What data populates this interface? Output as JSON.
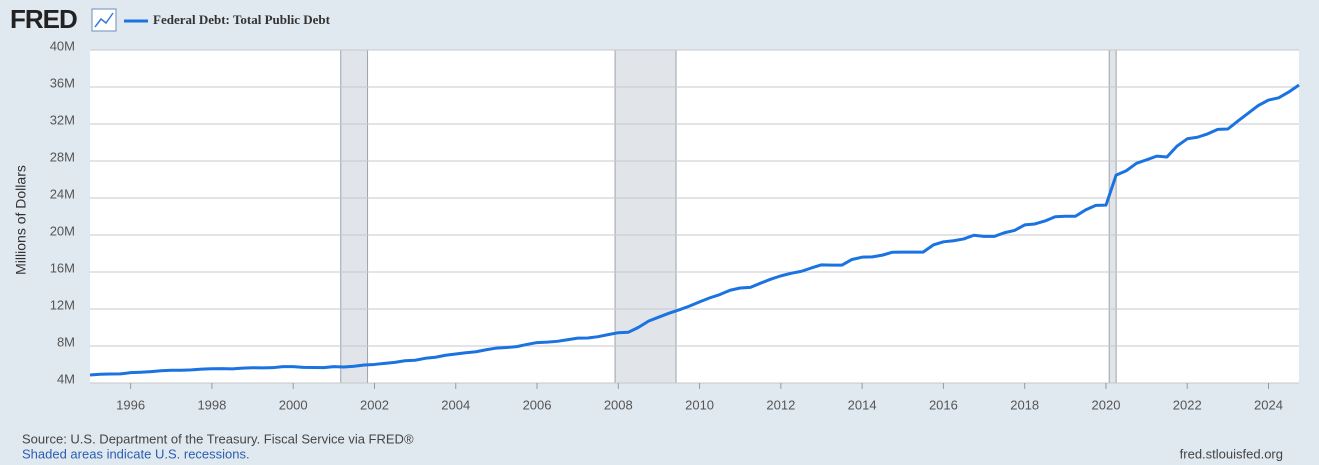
{
  "logo": "FRED",
  "chart_data": {
    "type": "line",
    "y_label": "Millions of Dollars",
    "source": "Source: U.S. Department of the Treasury. Fiscal Service via FRED®",
    "note": "Shaded areas indicate U.S. recessions.",
    "site": "fred.stlouisfed.org",
    "grid": true,
    "recessions": [
      [
        2001.17,
        2001.83
      ],
      [
        2007.92,
        2009.42
      ],
      [
        2020.08,
        2020.25
      ]
    ],
    "xlim": [
      1995,
      2024.75
    ],
    "xticks": [
      1996,
      1998,
      2000,
      2002,
      2004,
      2006,
      2008,
      2010,
      2012,
      2014,
      2016,
      2018,
      2020,
      2022,
      2024
    ],
    "ylim": [
      4000000,
      40000000
    ],
    "yticks": [
      {
        "value": 4000000,
        "label": "4M"
      },
      {
        "value": 8000000,
        "label": "8M"
      },
      {
        "value": 12000000,
        "label": "12M"
      },
      {
        "value": 16000000,
        "label": "16M"
      },
      {
        "value": 20000000,
        "label": "20M"
      },
      {
        "value": 24000000,
        "label": "24M"
      },
      {
        "value": 28000000,
        "label": "28M"
      },
      {
        "value": 32000000,
        "label": "32M"
      },
      {
        "value": 36000000,
        "label": "36M"
      },
      {
        "value": 40000000,
        "label": "40M"
      }
    ],
    "x": [
      1995,
      1995.25,
      1995.5,
      1995.75,
      1996,
      1996.25,
      1996.5,
      1996.75,
      1997,
      1997.25,
      1997.5,
      1997.75,
      1998,
      1998.25,
      1998.5,
      1998.75,
      1999,
      1999.25,
      1999.5,
      1999.75,
      2000,
      2000.25,
      2000.5,
      2000.75,
      2001,
      2001.25,
      2001.5,
      2001.75,
      2002,
      2002.25,
      2002.5,
      2002.75,
      2003,
      2003.25,
      2003.5,
      2003.75,
      2004,
      2004.25,
      2004.5,
      2004.75,
      2005,
      2005.25,
      2005.5,
      2005.75,
      2006,
      2006.25,
      2006.5,
      2006.75,
      2007,
      2007.25,
      2007.5,
      2007.75,
      2008,
      2008.25,
      2008.5,
      2008.75,
      2009,
      2009.25,
      2009.5,
      2009.75,
      2010,
      2010.25,
      2010.5,
      2010.75,
      2011,
      2011.25,
      2011.5,
      2011.75,
      2012,
      2012.25,
      2012.5,
      2012.75,
      2013,
      2013.25,
      2013.5,
      2013.75,
      2014,
      2014.25,
      2014.5,
      2014.75,
      2015,
      2015.25,
      2015.5,
      2015.75,
      2016,
      2016.25,
      2016.5,
      2016.75,
      2017,
      2017.25,
      2017.5,
      2017.75,
      2018,
      2018.25,
      2018.5,
      2018.75,
      2019,
      2019.25,
      2019.5,
      2019.75,
      2020,
      2020.25,
      2020.5,
      2020.75,
      2021,
      2021.25,
      2021.5,
      2021.75,
      2022,
      2022.25,
      2022.5,
      2022.75,
      2023,
      2023.25,
      2023.5,
      2023.75,
      2024,
      2024.25,
      2024.5,
      2024.75
    ],
    "series": [
      {
        "name": "Federal Debt: Total Public Debt",
        "color": "#1a73e0",
        "values": [
          4864000,
          4951000,
          4974000,
          4989000,
          5118000,
          5161000,
          5225000,
          5324000,
          5381000,
          5376000,
          5413000,
          5502000,
          5542000,
          5548000,
          5526000,
          5614000,
          5651000,
          5639000,
          5656000,
          5776000,
          5773000,
          5686000,
          5674000,
          5662000,
          5773000,
          5727000,
          5807000,
          5943000,
          6006000,
          6126000,
          6228000,
          6405000,
          6460000,
          6670000,
          6783000,
          6998000,
          7131000,
          7274000,
          7379000,
          7596000,
          7776000,
          7836000,
          7933000,
          8170000,
          8371000,
          8420000,
          8507000,
          8680000,
          8849000,
          8867000,
          9008000,
          9229000,
          9437000,
          9492000,
          10025000,
          10700000,
          11127000,
          11545000,
          11910000,
          12311000,
          12773000,
          13202000,
          13562000,
          14025000,
          14270000,
          14343000,
          14790000,
          15223000,
          15582000,
          15856000,
          16066000,
          16433000,
          16771000,
          16738000,
          16738000,
          17352000,
          17602000,
          17633000,
          17824000,
          18141000,
          18152000,
          18152000,
          18151000,
          18922000,
          19264000,
          19382000,
          19573000,
          19976000,
          19847000,
          19845000,
          20245000,
          20493000,
          21089000,
          21195000,
          21516000,
          21974000,
          22028000,
          22023000,
          22719000,
          23201000,
          23224000,
          26477000,
          26945000,
          27748000,
          28132000,
          28529000,
          28428000,
          29617000,
          30401000,
          30568000,
          30929000,
          31420000,
          31458000,
          32332000,
          33167000,
          34001000,
          34587000,
          34832000,
          35465000,
          36215000
        ]
      }
    ]
  }
}
